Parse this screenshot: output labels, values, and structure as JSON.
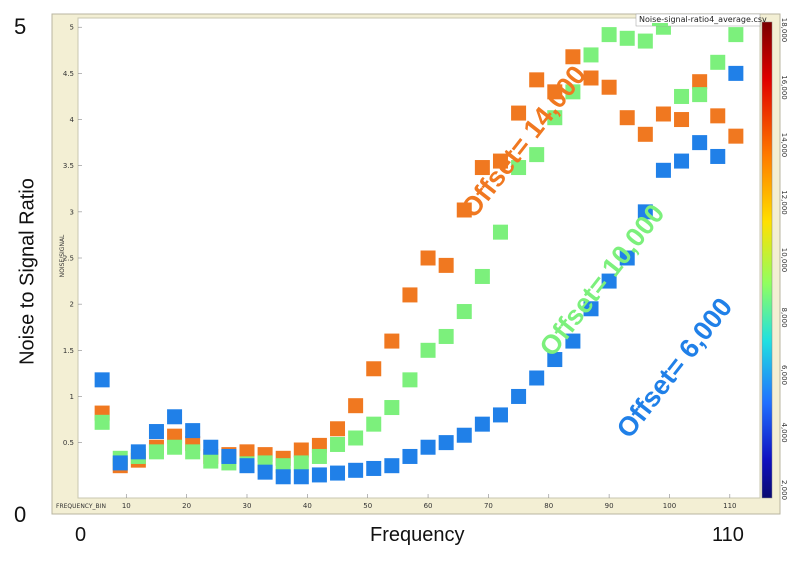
{
  "outer": {
    "ylabel": "Noise to Signal Ratio",
    "xlabel": "Frequency",
    "y_top": "5",
    "y_bottom": "0",
    "x_left": "0",
    "x_right": "110"
  },
  "chart_data": {
    "type": "scatter",
    "legend_file": "Noise-signal-ratio4_average.csv",
    "inner_ylabel": "NOISE/SIGNAL",
    "inner_xlabel": "FREQUENCY_BIN",
    "xlim": [
      2,
      115
    ],
    "ylim": [
      -0.1,
      5.1
    ],
    "x_ticks": [
      "10",
      "20",
      "30",
      "40",
      "50",
      "60",
      "70",
      "80",
      "90",
      "100",
      "110"
    ],
    "x_tick_values": [
      10,
      20,
      30,
      40,
      50,
      60,
      70,
      80,
      90,
      100,
      110
    ],
    "y_ticks": [
      "0.5",
      "1",
      "1.5",
      "2",
      "2.5",
      "3",
      "3.5",
      "4",
      "4.5",
      "5"
    ],
    "y_tick_values": [
      0.5,
      1,
      1.5,
      2,
      2.5,
      3,
      3.5,
      4,
      4.5,
      5
    ],
    "colorbar": {
      "labels": [
        "18,000",
        "16,000",
        "14,000",
        "12,000",
        "10,000",
        "8,000",
        "6,000",
        "4,000",
        "2,000"
      ],
      "values": [
        18000,
        16000,
        14000,
        12000,
        10000,
        8000,
        6000,
        4000,
        2000
      ]
    },
    "annotations": [
      {
        "text": "Offset= 14,000",
        "color": "#f07820",
        "at": [
          77,
          3.7
        ],
        "angle": -52
      },
      {
        "text": "Offset= 10,000",
        "color": "#7cf07c",
        "at": [
          90,
          2.2
        ],
        "angle": -52
      },
      {
        "text": "Offset= 6,000",
        "color": "#2080e8",
        "at": [
          102,
          1.25
        ],
        "angle": -52
      }
    ],
    "series": [
      {
        "color": "#f07820",
        "offset": 14000,
        "x": [
          6,
          9,
          12,
          15,
          18,
          21,
          24,
          27,
          30,
          33,
          36,
          39,
          42,
          45,
          48,
          51,
          54,
          57,
          60,
          63,
          66,
          69,
          72,
          75,
          78,
          81,
          84,
          87,
          90,
          93,
          96,
          99,
          102,
          105,
          108,
          111
        ],
        "y": [
          0.82,
          0.25,
          0.31,
          0.45,
          0.57,
          0.49,
          0.35,
          0.37,
          0.4,
          0.37,
          0.33,
          0.42,
          0.47,
          0.65,
          0.9,
          1.3,
          1.6,
          2.1,
          2.5,
          2.42,
          3.02,
          3.48,
          3.55,
          4.07,
          4.43,
          4.3,
          4.68,
          4.45,
          4.35,
          4.02,
          3.84,
          4.06,
          4.0,
          4.41,
          4.04,
          3.82
        ]
      },
      {
        "color": "#7cf07c",
        "offset": 10000,
        "x": [
          6,
          9,
          12,
          15,
          18,
          21,
          24,
          27,
          30,
          33,
          36,
          39,
          42,
          45,
          48,
          51,
          54,
          57,
          60,
          63,
          66,
          69,
          72,
          75,
          78,
          81,
          84,
          87,
          90,
          93,
          96,
          99,
          102,
          105,
          108,
          111
        ],
        "y": [
          0.72,
          0.33,
          0.35,
          0.4,
          0.45,
          0.4,
          0.3,
          0.28,
          0.27,
          0.28,
          0.25,
          0.28,
          0.35,
          0.48,
          0.55,
          0.7,
          0.88,
          1.18,
          1.5,
          1.65,
          1.92,
          2.3,
          2.78,
          3.48,
          3.62,
          4.02,
          4.3,
          4.7,
          4.92,
          4.88,
          4.85,
          5.0,
          4.25,
          4.27,
          4.62,
          4.92
        ]
      },
      {
        "color": "#2080e8",
        "offset": 6000,
        "x": [
          6,
          9,
          12,
          15,
          18,
          21,
          24,
          27,
          30,
          33,
          36,
          39,
          42,
          45,
          48,
          51,
          54,
          57,
          60,
          63,
          66,
          69,
          72,
          75,
          78,
          81,
          84,
          87,
          90,
          93,
          96,
          99,
          102,
          105,
          108,
          111
        ],
        "y": [
          1.18,
          0.28,
          0.4,
          0.62,
          0.78,
          0.63,
          0.45,
          0.35,
          0.25,
          0.18,
          0.13,
          0.13,
          0.15,
          0.17,
          0.2,
          0.22,
          0.25,
          0.35,
          0.45,
          0.5,
          0.58,
          0.7,
          0.8,
          1.0,
          1.2,
          1.4,
          1.6,
          1.95,
          2.25,
          2.5,
          3.0,
          3.45,
          3.55,
          3.75,
          3.6,
          4.5
        ]
      }
    ]
  }
}
